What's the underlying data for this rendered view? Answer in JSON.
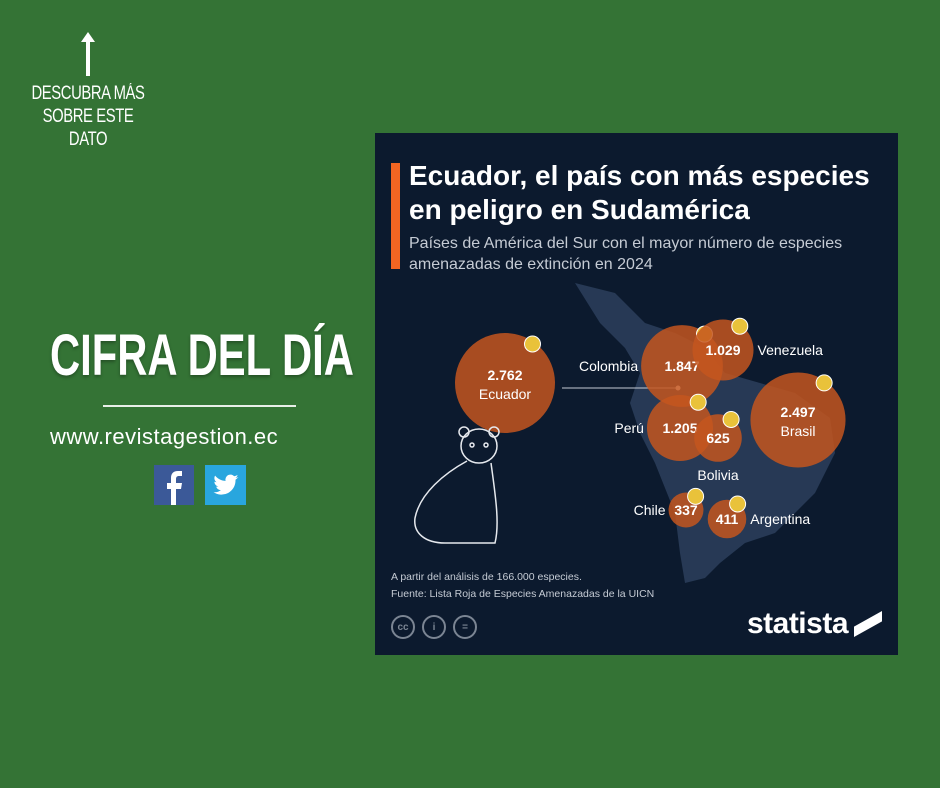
{
  "side": {
    "cta": "DESCUBRA MÁS SOBRE ESTE DATO",
    "heading": "CIFRA DEL DÍA",
    "url": "www.revistagestion.ec",
    "social": [
      "facebook",
      "twitter"
    ]
  },
  "card": {
    "title": "Ecuador, el país con más especies en peligro en Sudamérica",
    "subtitle": "Países de América del Sur con el mayor número de especies amenazadas de extinción en 2024",
    "note": "A partir del análisis de 166.000 especies.",
    "source": "Fuente: Lista Roja de Especies Amenazadas de la UICN",
    "brand": "statista",
    "accent": "#f26522",
    "bubble_color": "#c4561f"
  },
  "chart_data": {
    "type": "bubble",
    "title": "Ecuador, el país con más especies en peligro en Sudamérica",
    "categories": [
      "Ecuador",
      "Colombia",
      "Venezuela",
      "Perú",
      "Bolivia",
      "Brasil",
      "Chile",
      "Argentina"
    ],
    "values": [
      2762,
      1847,
      1029,
      1205,
      625,
      2497,
      337,
      411
    ],
    "labels": [
      "2.762",
      "1.847",
      "1.029",
      "1.205",
      "625",
      "2.497",
      "337",
      "411"
    ]
  }
}
